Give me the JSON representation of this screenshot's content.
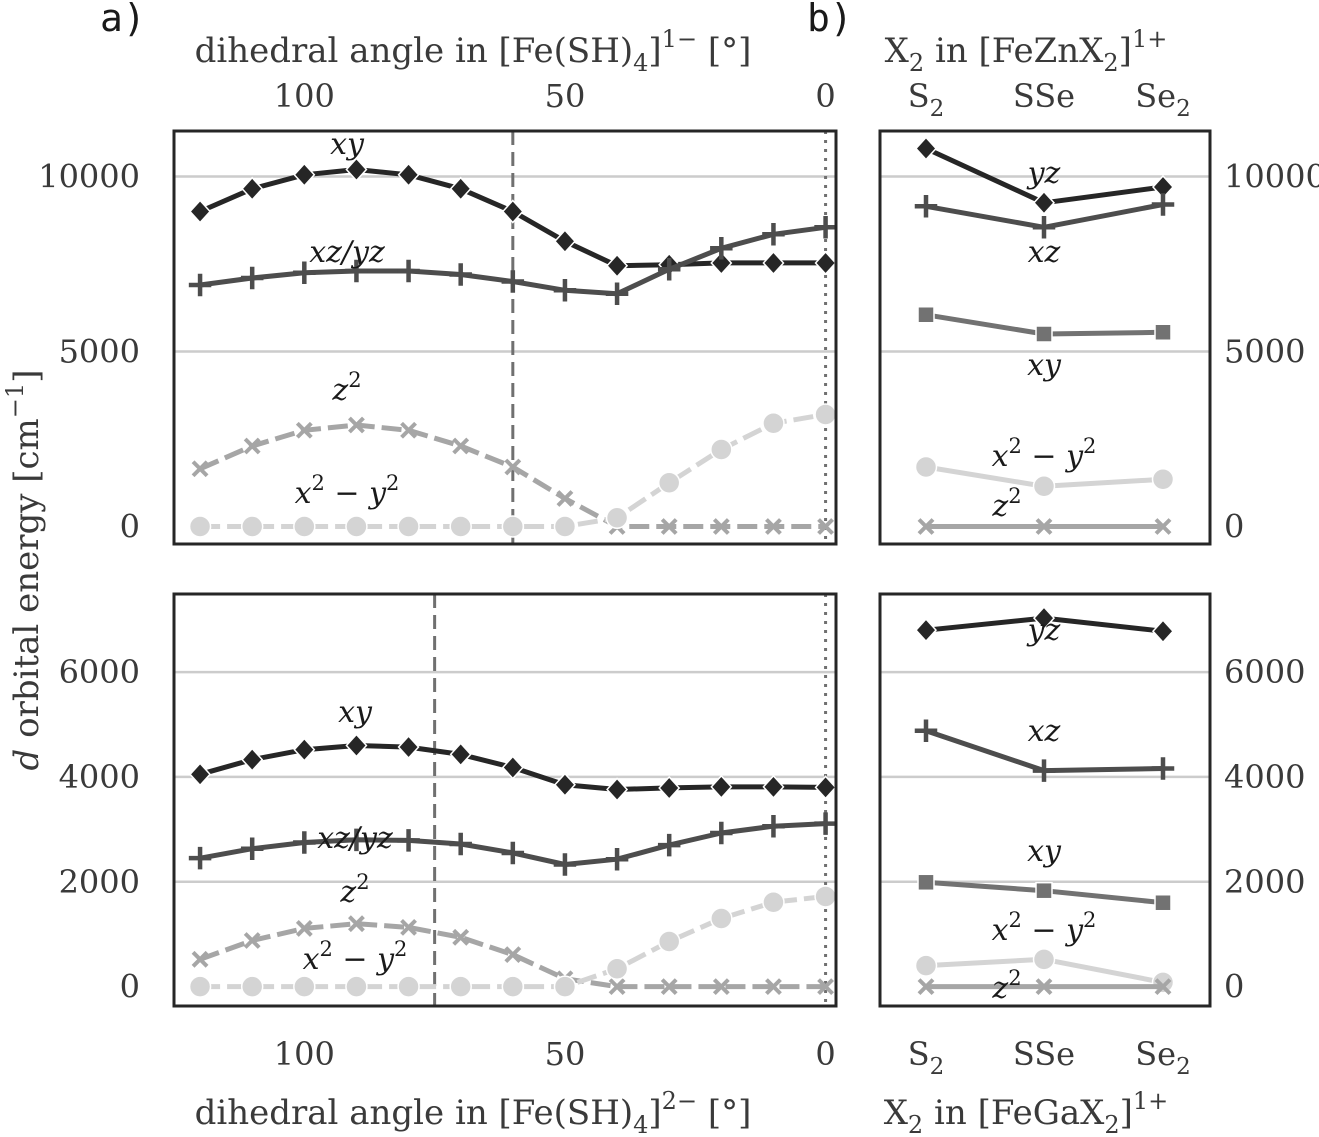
{
  "panel_labels": {
    "a": "a)",
    "b": "b)"
  },
  "axis_titles": {
    "top_left": [
      "dihedral angle in [Fe(SH)",
      "4",
      "]",
      "1−",
      " [°]"
    ],
    "bottom_left": [
      "dihedral angle in [Fe(SH)",
      "4",
      "]",
      "2−",
      " [°]"
    ],
    "top_right": [
      "X",
      "2",
      " in [FeZnX",
      "2",
      "]",
      "1+"
    ],
    "bottom_right": [
      "X",
      "2",
      " in [FeGaX",
      "2",
      "]",
      "1+"
    ],
    "ylabel": [
      "d",
      " orbital energy [cm",
      "−1",
      "]"
    ]
  },
  "colors": {
    "xy": "#262626",
    "xzyz": "#4d4d4d",
    "sq": "#727272",
    "z2": "#a6a6a6",
    "x2y2": "#d4d4d4",
    "vline": "#707070",
    "grid": "#cccccc",
    "frame": "#262626"
  },
  "chart_data": [
    {
      "id": "a_top",
      "type": "line",
      "x_ticks": [
        "100",
        "50",
        "0"
      ],
      "x_tick_values": [
        100,
        50,
        0
      ],
      "y_ticks": [
        "10000",
        "5000",
        "0"
      ],
      "y_tick_values": [
        10000,
        5000,
        0
      ],
      "xlim": [
        125,
        -2
      ],
      "ylim": [
        -500,
        11300
      ],
      "x": [
        120,
        110,
        100,
        90,
        80,
        70,
        60,
        50,
        40,
        30,
        20,
        10,
        0
      ],
      "vlines": [
        {
          "x": 60,
          "style": "dashed"
        },
        {
          "x": 0,
          "style": "dotted"
        }
      ],
      "series": [
        {
          "key": "xy",
          "label": "xy",
          "marker": "diamond",
          "values": [
            9000,
            9650,
            10050,
            10200,
            10050,
            9650,
            9000,
            8150,
            7450,
            7480,
            7530,
            7530,
            7530
          ]
        },
        {
          "key": "xzyz",
          "label": "xz/yz",
          "marker": "plus",
          "values": [
            6900,
            7100,
            7250,
            7300,
            7300,
            7200,
            7000,
            6750,
            6650,
            7350,
            7950,
            8350,
            8550
          ]
        },
        {
          "key": "z2",
          "label": "z2",
          "marker": "x",
          "dashed": true,
          "values": [
            1650,
            2300,
            2750,
            2900,
            2750,
            2300,
            1700,
            800,
            0,
            0,
            0,
            0,
            0
          ]
        },
        {
          "key": "x2y2",
          "label": "x2 − y2",
          "marker": "circle",
          "dashed": true,
          "values": [
            0,
            0,
            0,
            0,
            0,
            0,
            0,
            0,
            250,
            1250,
            2200,
            2950,
            3200
          ]
        }
      ]
    },
    {
      "id": "a_bottom",
      "type": "line",
      "x_ticks": [
        "100",
        "50",
        "0"
      ],
      "x_tick_values": [
        100,
        50,
        0
      ],
      "y_ticks": [
        "6000",
        "4000",
        "2000",
        "0"
      ],
      "y_tick_values": [
        6000,
        4000,
        2000,
        0
      ],
      "xlim": [
        125,
        -2
      ],
      "ylim": [
        -370,
        7490
      ],
      "x": [
        120,
        110,
        100,
        90,
        80,
        70,
        60,
        50,
        40,
        30,
        20,
        10,
        0
      ],
      "vlines": [
        {
          "x": 75,
          "style": "dashed"
        },
        {
          "x": 0,
          "style": "dotted"
        }
      ],
      "series": [
        {
          "key": "xy",
          "label": "xy",
          "marker": "diamond",
          "values": [
            4050,
            4330,
            4520,
            4600,
            4570,
            4430,
            4180,
            3850,
            3760,
            3790,
            3810,
            3810,
            3800
          ]
        },
        {
          "key": "xzyz",
          "label": "xz/yz",
          "marker": "plus",
          "values": [
            2450,
            2630,
            2750,
            2800,
            2790,
            2720,
            2550,
            2330,
            2430,
            2700,
            2930,
            3060,
            3110
          ]
        },
        {
          "key": "z2",
          "label": "z2",
          "marker": "x",
          "dashed": true,
          "values": [
            520,
            880,
            1110,
            1200,
            1130,
            940,
            610,
            150,
            0,
            0,
            0,
            0,
            0
          ]
        },
        {
          "key": "x2y2",
          "label": "x2 − y2",
          "marker": "circle",
          "dashed": true,
          "values": [
            0,
            0,
            0,
            0,
            0,
            0,
            0,
            0,
            340,
            860,
            1300,
            1610,
            1720
          ]
        }
      ]
    },
    {
      "id": "b_top",
      "type": "line",
      "categories": [
        "S2",
        "SSe",
        "Se2"
      ],
      "y_ticks": [
        "10000",
        "5000",
        "0"
      ],
      "y_tick_values": [
        10000,
        5000,
        0
      ],
      "ylim": [
        -500,
        11300
      ],
      "series": [
        {
          "key": "xy",
          "label": "yz",
          "marker": "diamond",
          "values": [
            10800,
            9250,
            9700
          ]
        },
        {
          "key": "xzyz",
          "label": "xz",
          "marker": "plus",
          "values": [
            9150,
            8550,
            9200
          ]
        },
        {
          "key": "sq",
          "label": "xy",
          "marker": "square",
          "values": [
            6050,
            5500,
            5550
          ]
        },
        {
          "key": "x2y2",
          "label": "x2 − y2",
          "marker": "circle",
          "values": [
            1700,
            1150,
            1350
          ]
        },
        {
          "key": "z2",
          "label": "z2",
          "marker": "x",
          "values": [
            0,
            0,
            0
          ]
        }
      ]
    },
    {
      "id": "b_bottom",
      "type": "line",
      "categories": [
        "S2",
        "SSe",
        "Se2"
      ],
      "y_ticks": [
        "6000",
        "4000",
        "2000",
        "0"
      ],
      "y_tick_values": [
        6000,
        4000,
        2000,
        0
      ],
      "ylim": [
        -370,
        7490
      ],
      "series": [
        {
          "key": "xy",
          "label": "yz",
          "marker": "diamond",
          "values": [
            6800,
            7030,
            6780
          ]
        },
        {
          "key": "xzyz",
          "label": "xz",
          "marker": "plus",
          "values": [
            4880,
            4120,
            4160
          ]
        },
        {
          "key": "sq",
          "label": "xy",
          "marker": "square",
          "values": [
            1990,
            1830,
            1600
          ]
        },
        {
          "key": "x2y2",
          "label": "x2 − y2",
          "marker": "circle",
          "values": [
            400,
            520,
            80
          ]
        },
        {
          "key": "z2",
          "label": "z2",
          "marker": "x",
          "values": [
            0,
            0,
            0
          ]
        }
      ]
    }
  ]
}
